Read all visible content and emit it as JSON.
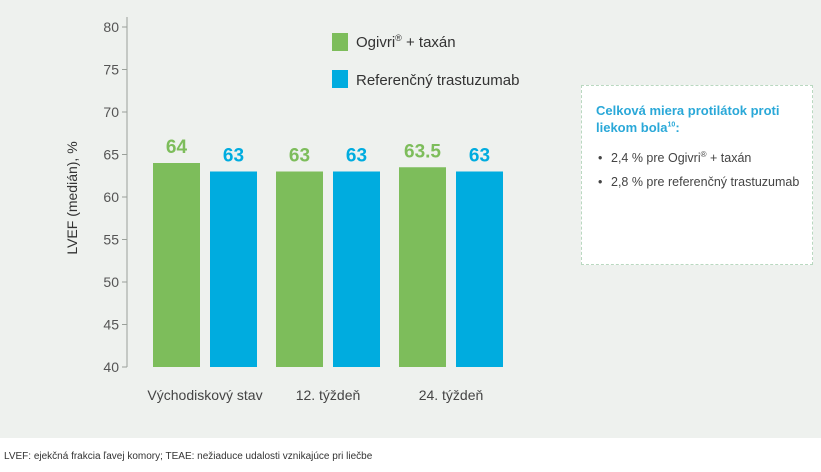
{
  "chart_data": {
    "type": "bar",
    "ylabel": "LVEF (medián), %",
    "ylim": [
      40,
      80
    ],
    "yticks": [
      40,
      45,
      50,
      55,
      60,
      65,
      70,
      75,
      80
    ],
    "categories": [
      "Východiskový stav",
      "12. týždeň",
      "24. týždeň"
    ],
    "series": [
      {
        "name": "Ogivri® + taxán",
        "color": "#7dbd5b",
        "values": [
          64,
          63,
          63.5
        ],
        "labels": [
          "64",
          "63",
          "63.5"
        ]
      },
      {
        "name": "Referenčný trastuzumab",
        "color": "#00acdf",
        "values": [
          63,
          63,
          63
        ],
        "labels": [
          "63",
          "63",
          "63"
        ]
      }
    ],
    "legend_position": "top-right",
    "grid": false
  },
  "legend": {
    "ogivri_name": "Ogivri",
    "ogivri_mark": "®",
    "ogivri_suffix": " + taxán",
    "reference": "Referenčný trastuzumab"
  },
  "info_box": {
    "title": "Celková miera protilátok proti liekom bola",
    "title_sup": "10",
    "title_end": ":",
    "item1_text": "2,4 % pre Ogivri",
    "item1_mark": "®",
    "item1_end": " + taxán",
    "item2_text": "2,8 % pre referenčný trastuzumab"
  },
  "footnote": "LVEF: ejekčná frakcia ľavej komory; TEAE: nežiaduce udalosti vznikajúce pri liečbe"
}
